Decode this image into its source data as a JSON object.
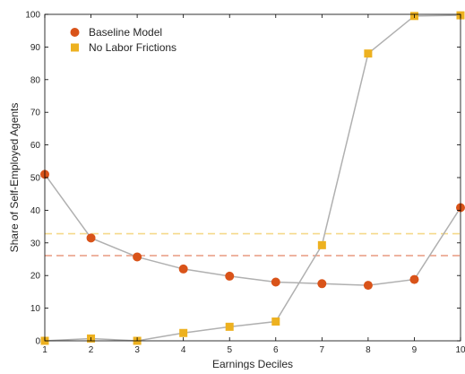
{
  "chart_data": {
    "type": "line",
    "xlabel": "Earnings Deciles",
    "ylabel": "Share of Self-Employed Agents",
    "x": [
      1,
      2,
      3,
      4,
      5,
      6,
      7,
      8,
      9,
      10
    ],
    "x_ticks": [
      "1",
      "2",
      "3",
      "4",
      "5",
      "6",
      "7",
      "8",
      "9",
      "10"
    ],
    "y_ticks": [
      "0",
      "10",
      "20",
      "30",
      "40",
      "50",
      "60",
      "70",
      "80",
      "90",
      "100"
    ],
    "xlim": [
      1,
      10
    ],
    "ylim": [
      0,
      100
    ],
    "grid": false,
    "legend_position": "top-left",
    "series": [
      {
        "name": "Baseline Model",
        "marker": "circle",
        "color": "#d95319",
        "line_color": "#b0b0b0",
        "values": [
          51.0,
          31.5,
          25.7,
          22.0,
          19.8,
          18.0,
          17.5,
          17.0,
          18.8,
          40.8
        ],
        "reference_line": 26.1,
        "reference_color": "#e89a80"
      },
      {
        "name": "No Labor Frictions",
        "marker": "square",
        "color": "#edb120",
        "line_color": "#b0b0b0",
        "values": [
          0.0,
          0.7,
          0.0,
          2.4,
          4.3,
          5.9,
          29.3,
          88.0,
          99.5,
          99.7
        ],
        "reference_line": 32.8,
        "reference_color": "#f5d98a"
      }
    ]
  }
}
